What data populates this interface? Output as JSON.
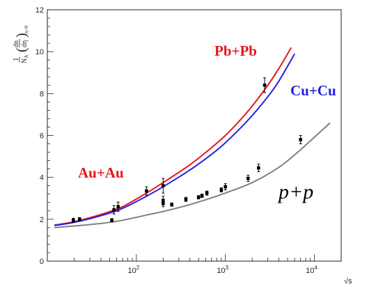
{
  "chart_data": {
    "type": "scatter",
    "x_scale": "log",
    "xlim": [
      10,
      20000
    ],
    "ylim": [
      0,
      12
    ],
    "grid": false,
    "xlabel": "√s",
    "ylabel": "1/N_A (dn/dη)_η=0",
    "x_ticks": [
      {
        "value": 100,
        "base": "10",
        "exp": "2"
      },
      {
        "value": 1000,
        "base": "10",
        "exp": "3"
      },
      {
        "value": 10000,
        "base": "10",
        "exp": "4"
      }
    ],
    "y_ticks": [
      "0",
      "2",
      "4",
      "6",
      "8",
      "10",
      "12"
    ],
    "series": [
      {
        "name": "Pb+Pb",
        "color": "#e8141c",
        "curve": {
          "x": [
            12,
            20,
            40,
            70,
            130,
            200,
            400,
            700,
            1000,
            1500,
            2000,
            3000,
            4000,
            5500
          ],
          "y": [
            1.72,
            1.88,
            2.23,
            2.6,
            3.25,
            3.75,
            4.6,
            5.42,
            6.0,
            6.78,
            7.4,
            8.4,
            9.2,
            10.2
          ]
        }
      },
      {
        "name": "Cu+Cu",
        "color": "#2222dd",
        "curve": {
          "x": [
            12,
            20,
            40,
            70,
            130,
            200,
            400,
            700,
            1000,
            1500,
            2000,
            3000,
            4000,
            6000
          ],
          "y": [
            1.7,
            1.85,
            2.17,
            2.52,
            3.1,
            3.55,
            4.35,
            5.1,
            5.65,
            6.38,
            6.95,
            7.85,
            8.6,
            9.9
          ]
        }
      },
      {
        "name": "Au+Au",
        "color": "#e8141c",
        "points": [
          {
            "x": 19.6,
            "y": 1.95,
            "err": 0.1
          },
          {
            "x": 56,
            "y": 2.45,
            "err": 0.2
          },
          {
            "x": 62.4,
            "y": 2.6,
            "err": 0.22
          },
          {
            "x": 130,
            "y": 3.35,
            "err": 0.2
          },
          {
            "x": 200,
            "y": 3.6,
            "err": 0.35
          },
          {
            "x": 2760,
            "y": 8.4,
            "err": 0.35
          }
        ]
      },
      {
        "name": "p+p",
        "color": "#808080",
        "curve": {
          "x": [
            12,
            20,
            40,
            70,
            130,
            200,
            400,
            700,
            1000,
            2000,
            4000,
            7000,
            15000
          ],
          "y": [
            1.6,
            1.68,
            1.8,
            1.95,
            2.2,
            2.37,
            2.7,
            3.02,
            3.25,
            3.75,
            4.48,
            5.32,
            6.6
          ]
        },
        "points": [
          {
            "x": 23,
            "y": 2.0,
            "err": 0.08
          },
          {
            "x": 53,
            "y": 1.95,
            "err": 0.08
          },
          {
            "x": 200,
            "y": 2.9,
            "err": 0.2
          },
          {
            "x": 200,
            "y": 2.75,
            "err": 0.15
          },
          {
            "x": 250,
            "y": 2.7,
            "err": 0.08
          },
          {
            "x": 360,
            "y": 2.95,
            "err": 0.1
          },
          {
            "x": 500,
            "y": 3.05,
            "err": 0.08
          },
          {
            "x": 546,
            "y": 3.12,
            "err": 0.08
          },
          {
            "x": 620,
            "y": 3.25,
            "err": 0.1
          },
          {
            "x": 900,
            "y": 3.4,
            "err": 0.1
          },
          {
            "x": 1000,
            "y": 3.55,
            "err": 0.15
          },
          {
            "x": 1800,
            "y": 3.95,
            "err": 0.15
          },
          {
            "x": 2360,
            "y": 4.45,
            "err": 0.18
          },
          {
            "x": 7000,
            "y": 5.8,
            "err": 0.2
          }
        ]
      }
    ],
    "labels": {
      "pbpb": "Pb+Pb",
      "cucu": "Cu+Cu",
      "auau": "Au+Au",
      "pp": "p+p"
    }
  }
}
